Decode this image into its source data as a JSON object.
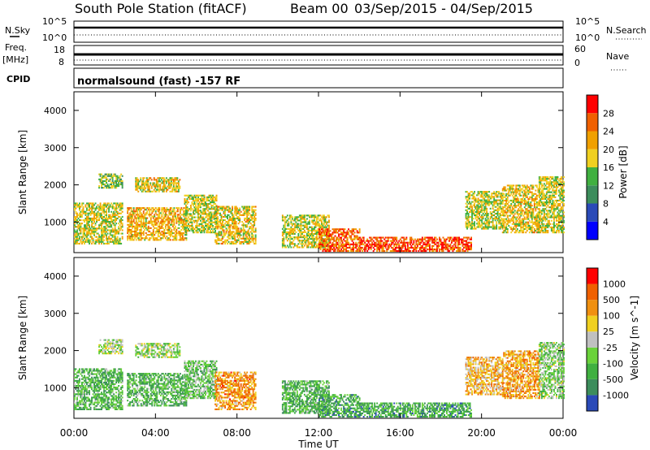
{
  "header": {
    "station": "South Pole Station (fitACF)",
    "beam": "Beam 00",
    "dates": "03/Sep/2015 - 04/Sep/2015"
  },
  "panels": {
    "nsky": {
      "left_label": "N.Sky",
      "right_label": "N.Search",
      "ticks_left": [
        "10^5",
        "10^0"
      ],
      "ticks_right": [
        "10^5",
        "10^0"
      ]
    },
    "freq": {
      "left_label": "Freq.",
      "left_unit": "[MHz]",
      "right_label": "Nave",
      "ticks_left": [
        "18",
        "8"
      ],
      "ticks_right": [
        "60",
        "0"
      ]
    },
    "cpid": {
      "label": "CPID",
      "value": "normalsound (fast) -157 RF"
    }
  },
  "chart_data": [
    {
      "type": "heatmap",
      "name": "power",
      "ylabel": "Slant Range [km]",
      "xlabel": "",
      "ylim": [
        180,
        4500
      ],
      "yticks": [
        "1000",
        "2000",
        "3000",
        "4000"
      ],
      "xlim": [
        "00:00",
        "24:00"
      ],
      "colorbar": {
        "label": "Power [dB]",
        "ticks": [
          "4",
          "8",
          "12",
          "16",
          "20",
          "24",
          "28"
        ],
        "colors": [
          "#0000ff",
          "#2a4ab8",
          "#3c8d5c",
          "#40b040",
          "#f0d020",
          "#f0a000",
          "#f06000",
          "#ff0000"
        ]
      },
      "regions": [
        {
          "t0": 0.0,
          "t1": 2.4,
          "r0": 400,
          "r1": 1500,
          "level": 0.55
        },
        {
          "t0": 1.2,
          "t1": 2.4,
          "r0": 1900,
          "r1": 2300,
          "level": 0.45
        },
        {
          "t0": 3.0,
          "t1": 5.2,
          "r0": 1800,
          "r1": 2200,
          "level": 0.6
        },
        {
          "t0": 2.6,
          "t1": 5.5,
          "r0": 500,
          "r1": 1400,
          "level": 0.65
        },
        {
          "t0": 5.4,
          "t1": 7.0,
          "r0": 700,
          "r1": 1700,
          "level": 0.55
        },
        {
          "t0": 6.9,
          "t1": 8.9,
          "r0": 400,
          "r1": 1400,
          "level": 0.6
        },
        {
          "t0": 10.2,
          "t1": 12.5,
          "r0": 300,
          "r1": 1200,
          "level": 0.55
        },
        {
          "t0": 12.0,
          "t1": 14.0,
          "r0": 200,
          "r1": 800,
          "level": 0.8
        },
        {
          "t0": 14.0,
          "t1": 19.5,
          "r0": 200,
          "r1": 600,
          "level": 0.85
        },
        {
          "t0": 19.2,
          "t1": 21.0,
          "r0": 800,
          "r1": 1800,
          "level": 0.55
        },
        {
          "t0": 21.0,
          "t1": 22.8,
          "r0": 700,
          "r1": 2000,
          "level": 0.6
        },
        {
          "t0": 22.8,
          "t1": 24.0,
          "r0": 700,
          "r1": 2200,
          "level": 0.55
        }
      ]
    },
    {
      "type": "heatmap",
      "name": "velocity",
      "ylabel": "Slant Range [km]",
      "xlabel": "Time UT",
      "ylim": [
        180,
        4500
      ],
      "yticks": [
        "1000",
        "2000",
        "3000",
        "4000"
      ],
      "xlim": [
        "00:00",
        "24:00"
      ],
      "xticks": [
        "00:00",
        "04:00",
        "08:00",
        "12:00",
        "16:00",
        "20:00",
        "00:00"
      ],
      "colorbar": {
        "label": "Velocity [m s^-1]",
        "ticks": [
          "1000",
          "500",
          "100",
          "25",
          "-25",
          "-100",
          "-500",
          "-1000"
        ],
        "colors": [
          "#2a4ab8",
          "#3c8d5c",
          "#40b040",
          "#6ad23a",
          "#c0c0c0",
          "#f0d020",
          "#f09010",
          "#f06000",
          "#ff0000"
        ]
      },
      "regions": [
        {
          "t0": 0.0,
          "t1": 2.4,
          "r0": 400,
          "r1": 1500,
          "level": 0.3
        },
        {
          "t0": 1.2,
          "t1": 2.4,
          "r0": 1900,
          "r1": 2300,
          "level": 0.45
        },
        {
          "t0": 3.0,
          "t1": 5.2,
          "r0": 1800,
          "r1": 2200,
          "level": 0.45
        },
        {
          "t0": 2.6,
          "t1": 5.5,
          "r0": 500,
          "r1": 1400,
          "level": 0.3
        },
        {
          "t0": 5.4,
          "t1": 7.0,
          "r0": 700,
          "r1": 1700,
          "level": 0.35
        },
        {
          "t0": 6.9,
          "t1": 8.9,
          "r0": 400,
          "r1": 1400,
          "level": 0.72
        },
        {
          "t0": 10.2,
          "t1": 12.5,
          "r0": 300,
          "r1": 1200,
          "level": 0.3
        },
        {
          "t0": 12.0,
          "t1": 14.0,
          "r0": 200,
          "r1": 800,
          "level": 0.25
        },
        {
          "t0": 14.0,
          "t1": 19.5,
          "r0": 200,
          "r1": 600,
          "level": 0.25
        },
        {
          "t0": 19.2,
          "t1": 21.0,
          "r0": 800,
          "r1": 1800,
          "level": 0.65
        },
        {
          "t0": 21.0,
          "t1": 22.8,
          "r0": 700,
          "r1": 2000,
          "level": 0.7
        },
        {
          "t0": 22.8,
          "t1": 24.0,
          "r0": 700,
          "r1": 2200,
          "level": 0.4
        }
      ]
    }
  ]
}
